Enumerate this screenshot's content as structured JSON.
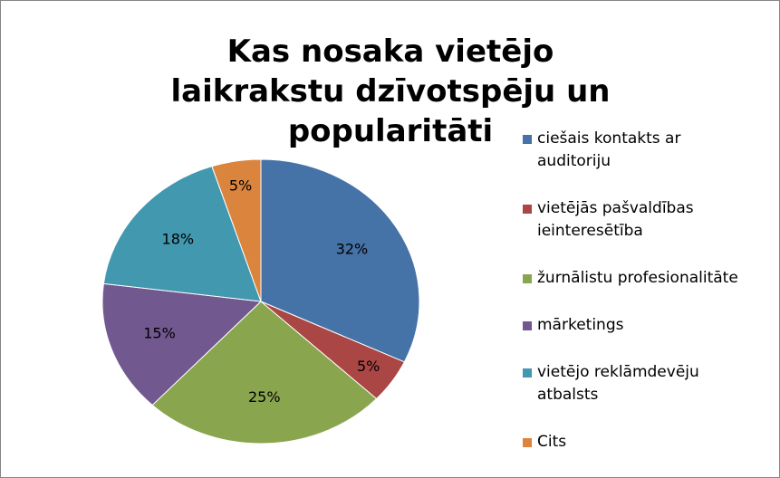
{
  "chart_data": {
    "type": "pie",
    "title": "Kas nosaka vietējo laikrakstu dzīvotspēju un popularitāti",
    "categories": [
      "ciešais kontakts ar auditoriju",
      "vietējās pašvaldības ieinteresētība",
      "žurnālistu profesionalitāte",
      "mārketings",
      "vietējo reklāmdevēju atbalsts",
      "Cits"
    ],
    "values": [
      32,
      5,
      25,
      15,
      18,
      5
    ],
    "value_labels": [
      "32%",
      "5%",
      "25%",
      "15%",
      "18%",
      "5%"
    ],
    "colors": [
      "#4572a7",
      "#aa4643",
      "#89a54e",
      "#71588f",
      "#4198af",
      "#db843d"
    ],
    "legend": "right"
  }
}
